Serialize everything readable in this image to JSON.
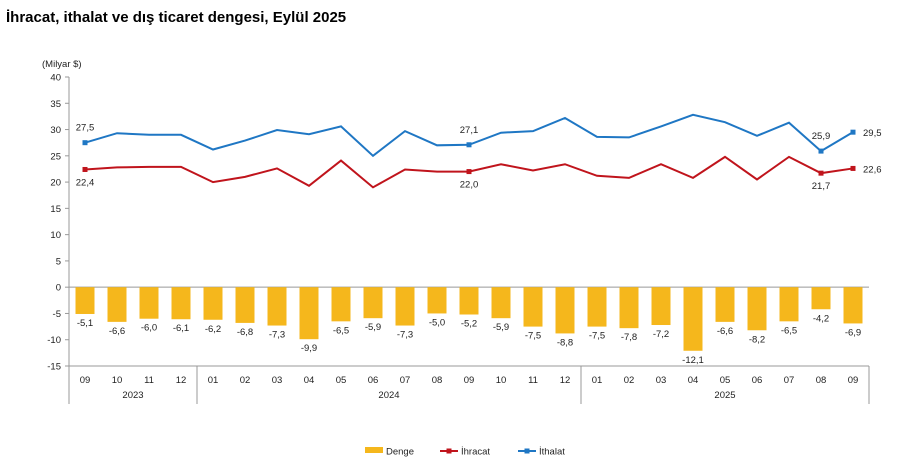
{
  "title": "İhracat, ithalat ve dış ticaret dengesi, Eylül 2025",
  "chart_data": {
    "type": "bar+line",
    "unit_label": "(Milyar $)",
    "ylim": [
      -15,
      40
    ],
    "yticks": [
      40,
      35,
      30,
      25,
      20,
      15,
      10,
      5,
      0,
      -5,
      -10,
      -15
    ],
    "categories": [
      "09",
      "10",
      "11",
      "12",
      "01",
      "02",
      "03",
      "04",
      "05",
      "06",
      "07",
      "08",
      "09",
      "10",
      "11",
      "12",
      "01",
      "02",
      "03",
      "04",
      "05",
      "06",
      "07",
      "08",
      "09"
    ],
    "years": [
      {
        "label": "2023",
        "count": 4
      },
      {
        "label": "2024",
        "count": 12
      },
      {
        "label": "2025",
        "count": 9
      }
    ],
    "series": [
      {
        "name": "Denge",
        "type": "bar",
        "color": "#F5B71C",
        "values": [
          -5.1,
          -6.6,
          -6.0,
          -6.1,
          -6.2,
          -6.8,
          -7.3,
          -9.9,
          -6.5,
          -5.9,
          -7.3,
          -5.0,
          -5.2,
          -5.9,
          -7.5,
          -8.8,
          -7.5,
          -7.8,
          -7.2,
          -12.1,
          -6.6,
          -8.2,
          -6.5,
          -4.2,
          -6.9
        ],
        "labels": [
          "-5,1",
          "-6,6",
          "-6,0",
          "-6,1",
          "-6,2",
          "-6,8",
          "-7,3",
          "-9,9",
          "-6,5",
          "-5,9",
          "-7,3",
          "-5,0",
          "-5,2",
          "-5,9",
          "-7,5",
          "-8,8",
          "-7,5",
          "-7,8",
          "-7,2",
          "-12,1",
          "-6,6",
          "-8,2",
          "-6,5",
          "-4,2",
          "-6,9"
        ]
      },
      {
        "name": "İhracat",
        "type": "line",
        "color": "#C0141C",
        "values": [
          22.4,
          22.8,
          22.9,
          22.9,
          20.0,
          21.0,
          22.6,
          19.3,
          24.1,
          19.0,
          22.4,
          22.0,
          22.0,
          23.4,
          22.2,
          23.4,
          21.2,
          20.8,
          23.4,
          20.8,
          24.8,
          20.5,
          24.8,
          21.7,
          22.6
        ],
        "point_labels": {
          "0": "22,4",
          "12": "22,0",
          "23": "21,7",
          "24": "22,6"
        }
      },
      {
        "name": "İthalat",
        "type": "line",
        "color": "#1F77C4",
        "values": [
          27.5,
          29.3,
          29.0,
          29.0,
          26.2,
          27.9,
          29.9,
          29.1,
          30.6,
          25.0,
          29.7,
          27.0,
          27.1,
          29.4,
          29.7,
          32.2,
          28.6,
          28.5,
          30.6,
          32.8,
          31.4,
          28.8,
          31.3,
          25.9,
          29.5
        ],
        "point_labels": {
          "0": "27,5",
          "12": "27,1",
          "23": "25,9",
          "24": "29,5"
        }
      }
    ],
    "legend": "bottom",
    "grid": false
  }
}
